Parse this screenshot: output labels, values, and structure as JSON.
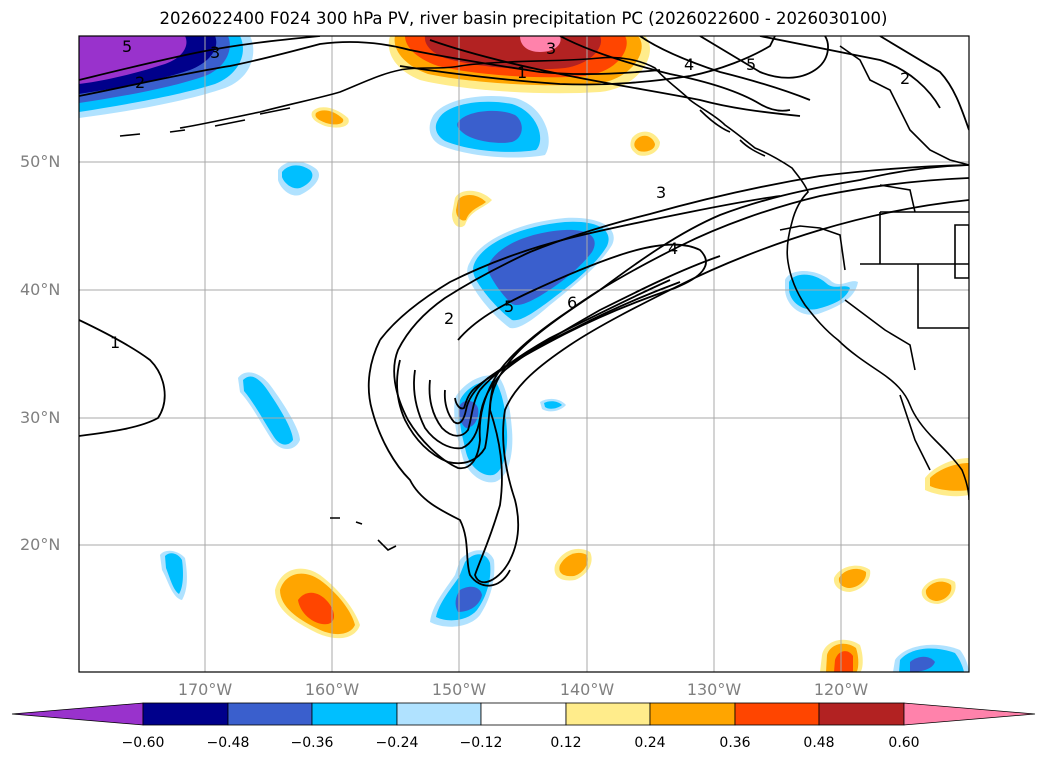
{
  "title": "2026022400 F024 300 hPa PV, river basin precipitation PC (2026022600 - 2026030100)",
  "latitude_labels": [
    "50°N",
    "40°N",
    "30°N",
    "20°N"
  ],
  "longitude_labels": [
    "170°W",
    "160°W",
    "150°W",
    "140°W",
    "130°W",
    "120°W"
  ],
  "contour_labels": [
    "5",
    "3",
    "2",
    "3",
    "1",
    "4",
    "5",
    "2",
    "3",
    "4",
    "2",
    "5",
    "6",
    "1"
  ],
  "colorbar": {
    "ticks": [
      "−0.60",
      "−0.48",
      "−0.36",
      "−0.24",
      "−0.12",
      "0.12",
      "0.24",
      "0.36",
      "0.48",
      "0.60"
    ],
    "colors": [
      "#9932cc",
      "#00008b",
      "#3a5fcd",
      "#00bfff",
      "#b0e2ff",
      "#ffffff",
      "#ffec8b",
      "#ffa500",
      "#ff4500",
      "#b22222",
      "#ff82ab"
    ]
  }
}
